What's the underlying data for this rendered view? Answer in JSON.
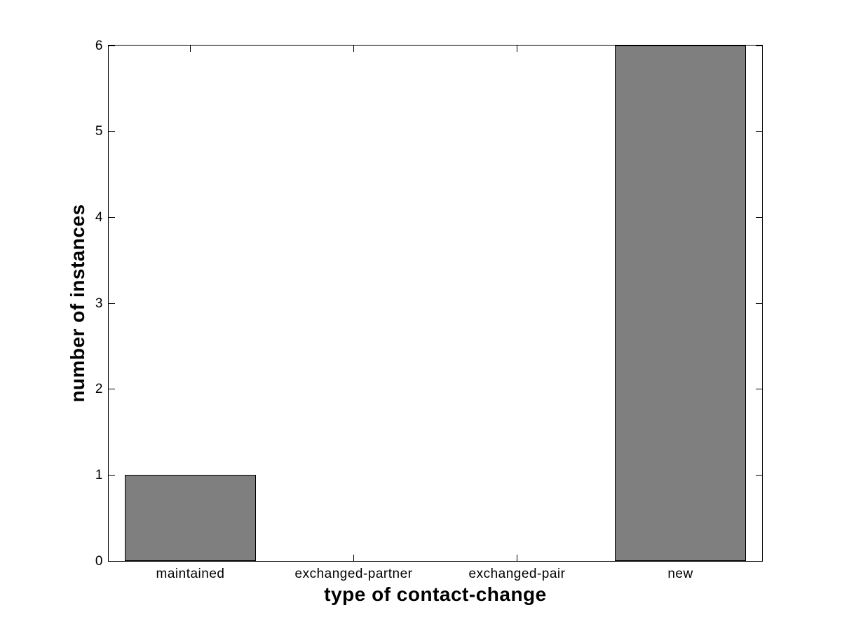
{
  "chart_data": {
    "type": "bar",
    "title": "",
    "categories": [
      "maintained",
      "exchanged-partner",
      "exchanged-pair",
      "new"
    ],
    "values": [
      1,
      0,
      0,
      6
    ],
    "xlabel": "type of contact-change",
    "ylabel": "number of instances",
    "ylim": [
      0,
      6
    ],
    "yticks": [
      "0",
      "1",
      "2",
      "3",
      "4",
      "5",
      "6"
    ],
    "bar_width_fraction": 0.8,
    "grid": false,
    "legend": null,
    "colors": {
      "bar_fill": "#7f7f7f",
      "bar_edge": "#000000",
      "axis": "#000000",
      "background": "#ffffff",
      "text": "#000000"
    },
    "style": "matlab-box-axes-with-inward-ticks-on-all-sides"
  }
}
